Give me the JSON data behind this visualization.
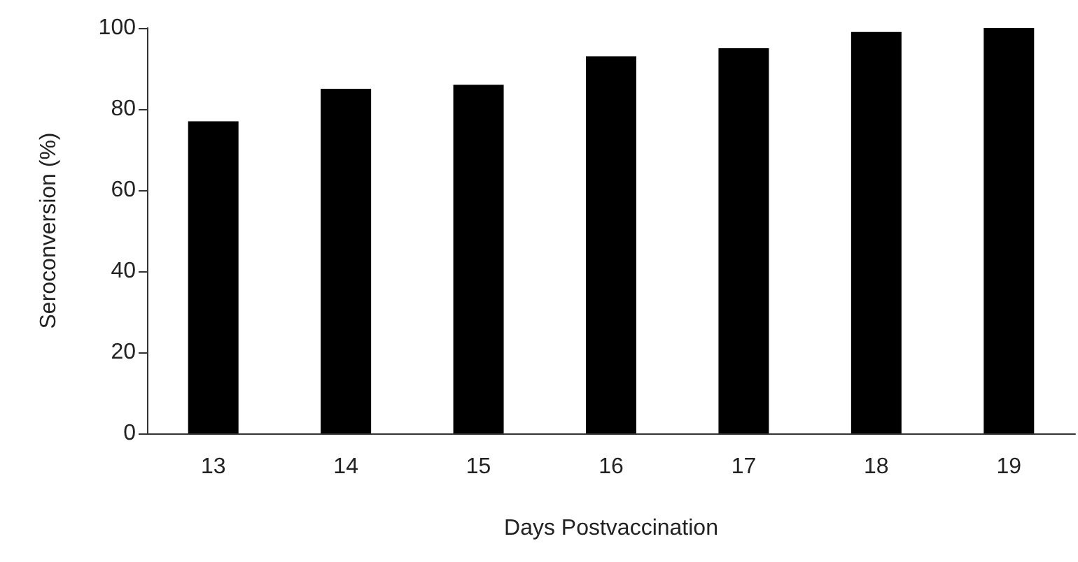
{
  "chart_data": {
    "type": "bar",
    "xlabel": "Days Postvaccination",
    "ylabel": "Seroconversion (%)",
    "categories": [
      "13",
      "14",
      "15",
      "16",
      "17",
      "18",
      "19"
    ],
    "values": [
      77,
      85,
      86,
      93,
      95,
      99,
      100
    ],
    "color": "#000000",
    "ylim": [
      0,
      100
    ],
    "yticks": [
      0,
      20,
      40,
      60,
      80,
      100
    ],
    "grid": false
  }
}
